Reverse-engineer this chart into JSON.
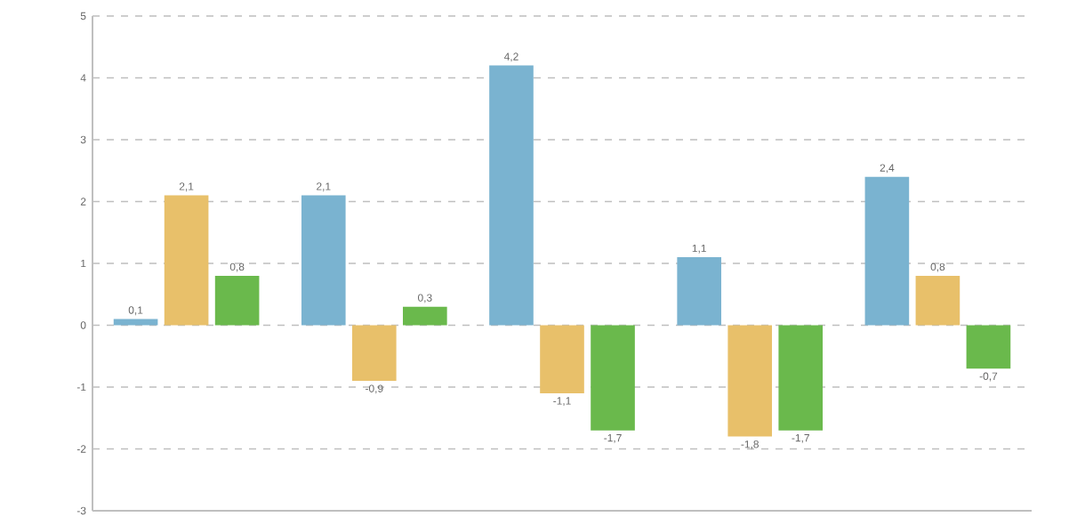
{
  "chart_data": {
    "type": "bar",
    "categories": [
      null,
      null,
      null,
      null,
      null
    ],
    "series": [
      {
        "color": "#7ab3d0",
        "values": [
          0.1,
          2.1,
          4.2,
          1.1,
          2.4
        ],
        "value_labels": [
          "0,1",
          "2,1",
          "4,2",
          "1,1",
          "2,4"
        ]
      },
      {
        "color": "#e8c06a",
        "values": [
          2.1,
          -0.9,
          -1.1,
          -1.8,
          0.8
        ],
        "value_labels": [
          "2,1",
          "-0,9",
          "-1,1",
          "-1,8",
          "0,8"
        ]
      },
      {
        "color": "#6ab94c",
        "values": [
          0.8,
          0.3,
          -1.7,
          -1.7,
          -0.7
        ],
        "value_labels": [
          "0,8",
          "0,3",
          "-1,7",
          "-1,7",
          "-0,7"
        ]
      }
    ],
    "ylim": [
      -3,
      5
    ],
    "yticks": [
      -3,
      -2,
      -1,
      0,
      1,
      2,
      3,
      4,
      5
    ],
    "grid": "y"
  }
}
